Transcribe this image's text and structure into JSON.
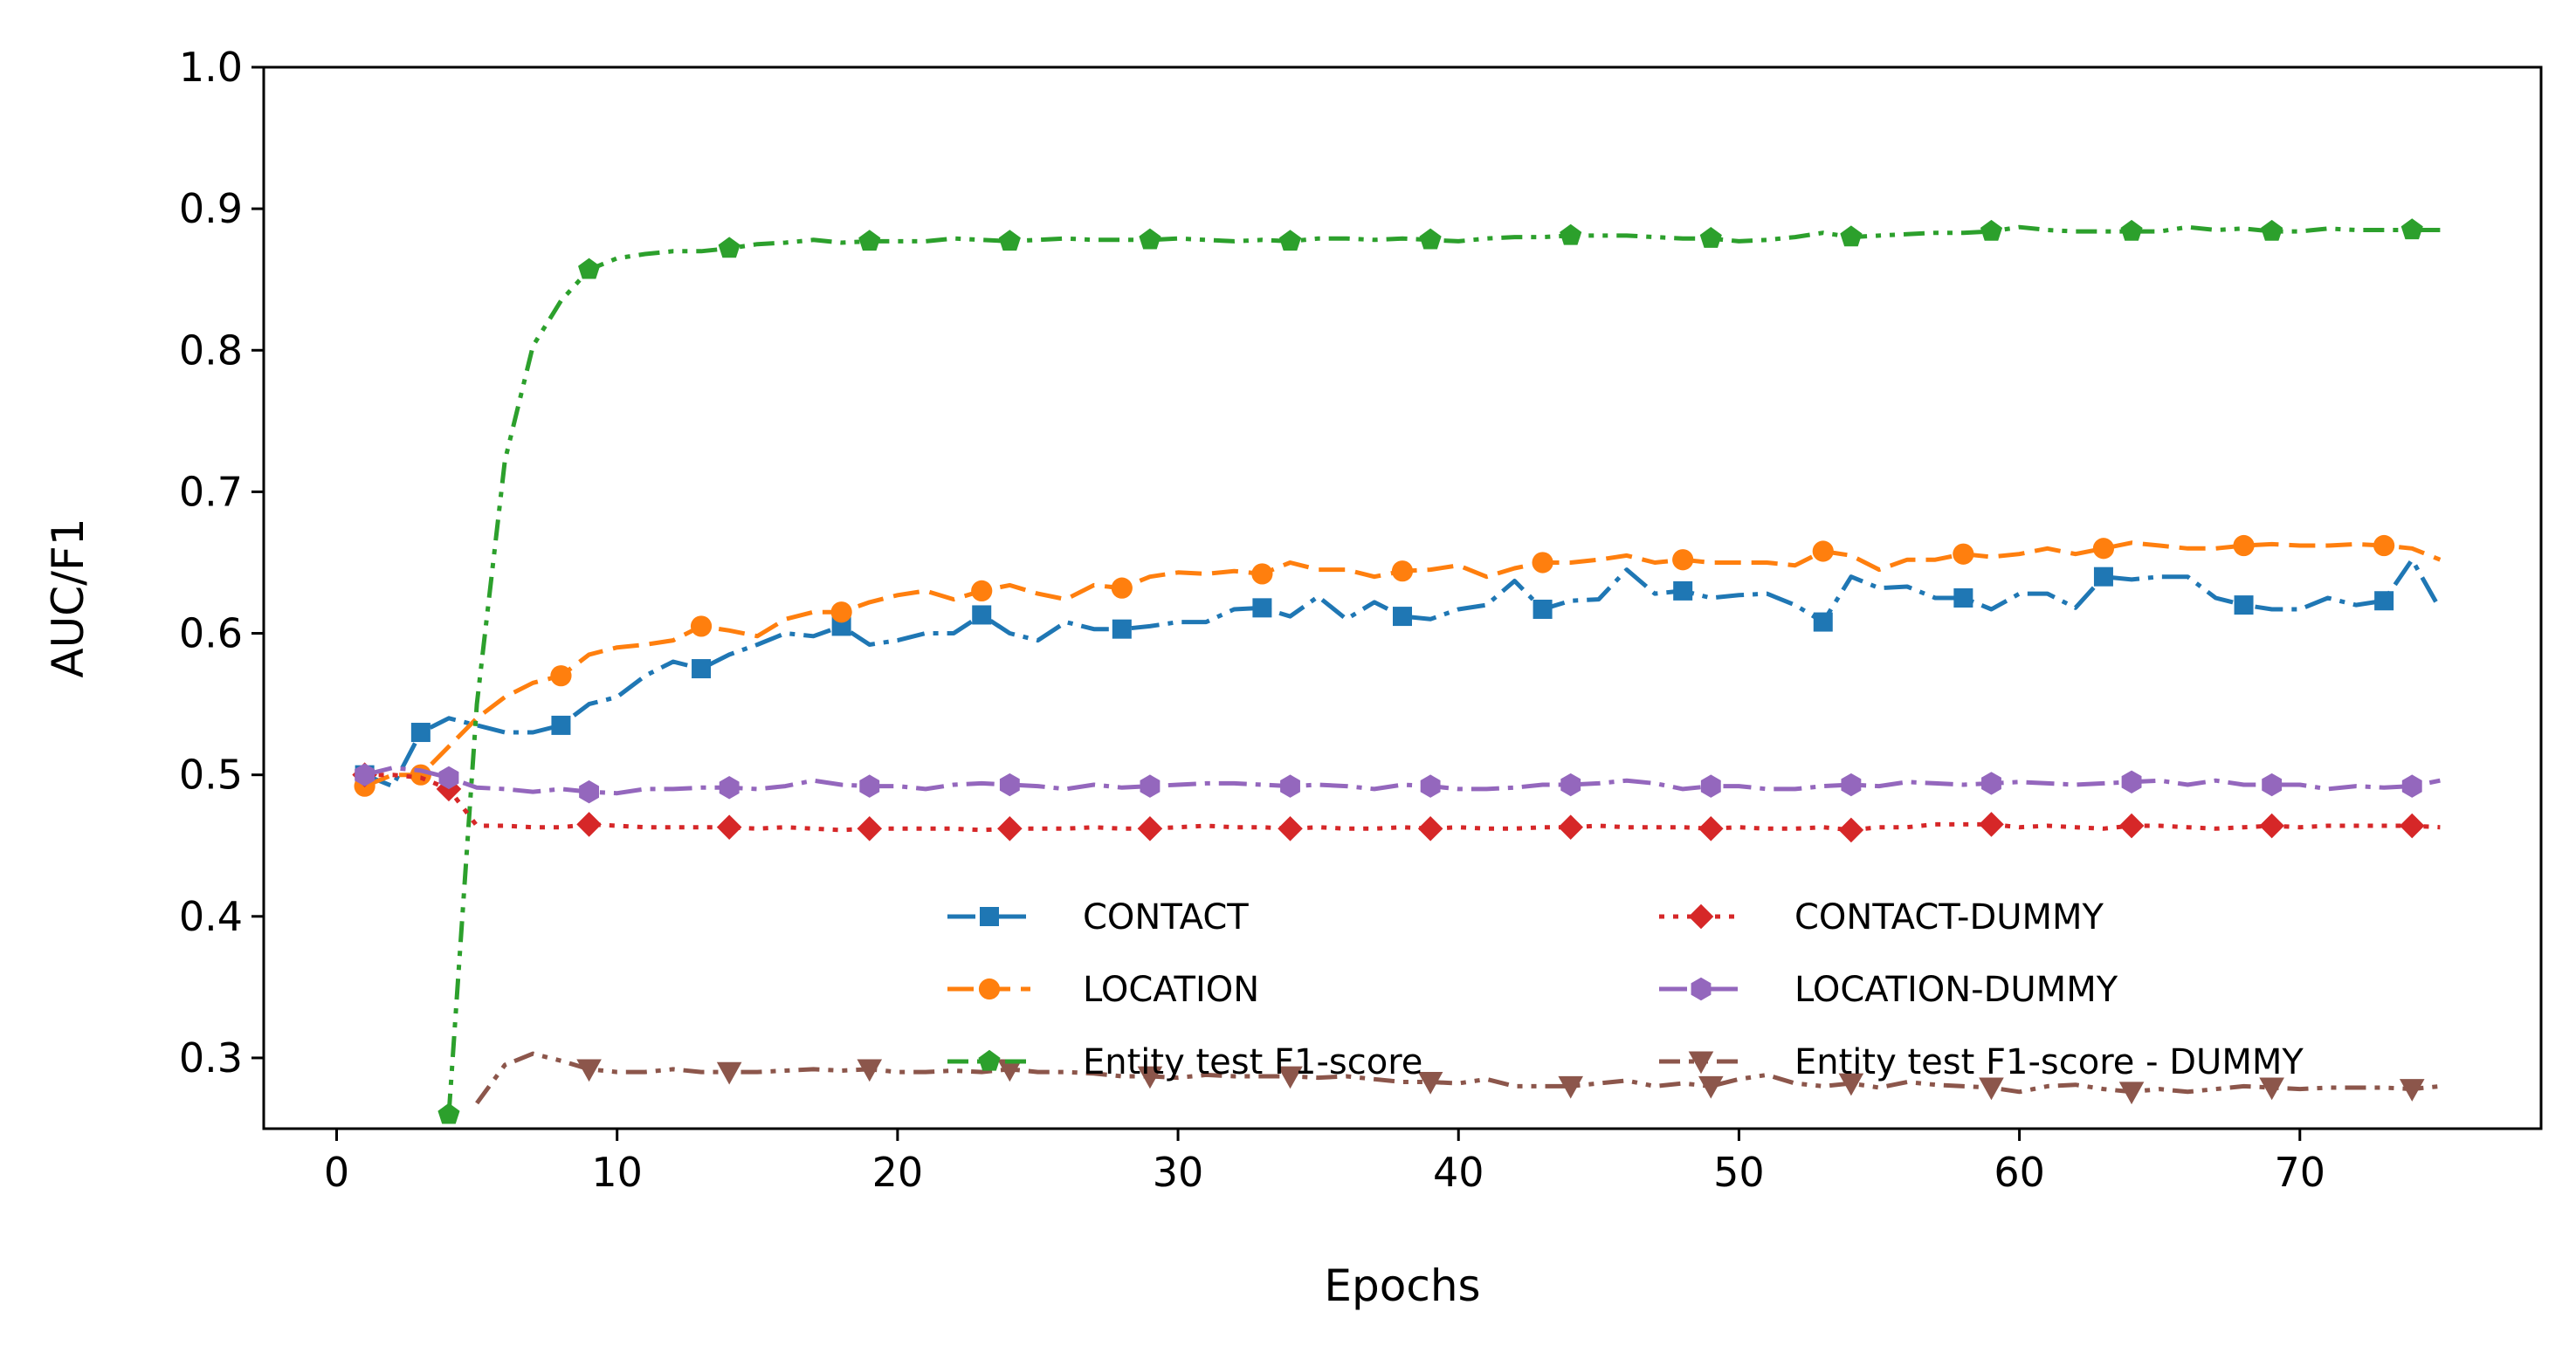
{
  "chart_data": {
    "type": "line",
    "title": "",
    "xlabel": "Epochs",
    "ylabel": "AUC/F1",
    "xlim": [
      -2.6,
      78.6
    ],
    "ylim": [
      0.25,
      1.0
    ],
    "xticks": [
      "0",
      "10",
      "20",
      "30",
      "40",
      "50",
      "60",
      "70"
    ],
    "yticks": [
      "0.3",
      "0.4",
      "0.5",
      "0.6",
      "0.7",
      "0.8",
      "0.9",
      "1.0"
    ],
    "grid": false,
    "legend_placement": "lower-right",
    "x": [
      1,
      2,
      3,
      4,
      5,
      6,
      7,
      8,
      9,
      10,
      11,
      12,
      13,
      14,
      15,
      16,
      17,
      18,
      19,
      20,
      21,
      22,
      23,
      24,
      25,
      26,
      27,
      28,
      29,
      30,
      31,
      32,
      33,
      34,
      35,
      36,
      37,
      38,
      39,
      40,
      41,
      42,
      43,
      44,
      45,
      46,
      47,
      48,
      49,
      50,
      51,
      52,
      53,
      54,
      55,
      56,
      57,
      58,
      59,
      60,
      61,
      62,
      63,
      64,
      65,
      66,
      67,
      68,
      69,
      70,
      71,
      72,
      73,
      74,
      75
    ],
    "series": [
      {
        "name": "CONTACT",
        "color": "#1f77b4",
        "marker": "square",
        "linestyle": "dashdot",
        "values": [
          0.5,
          0.492,
          0.53,
          0.54,
          0.535,
          0.53,
          0.53,
          0.535,
          0.55,
          0.555,
          0.57,
          0.58,
          0.575,
          0.585,
          0.592,
          0.6,
          0.598,
          0.605,
          0.592,
          0.595,
          0.6,
          0.6,
          0.613,
          0.6,
          0.595,
          0.608,
          0.603,
          0.603,
          0.605,
          0.608,
          0.608,
          0.617,
          0.618,
          0.612,
          0.626,
          0.61,
          0.622,
          0.612,
          0.61,
          0.617,
          0.62,
          0.637,
          0.617,
          0.623,
          0.624,
          0.645,
          0.628,
          0.63,
          0.625,
          0.627,
          0.628,
          0.62,
          0.608,
          0.64,
          0.632,
          0.633,
          0.625,
          0.625,
          0.617,
          0.628,
          0.628,
          0.618,
          0.64,
          0.638,
          0.64,
          0.64,
          0.625,
          0.62,
          0.617,
          0.617,
          0.625,
          0.62,
          0.623,
          0.652,
          0.617
        ]
      },
      {
        "name": "LOCATION",
        "color": "#ff7f0e",
        "marker": "circle",
        "linestyle": "dashed",
        "values": [
          0.492,
          0.5,
          0.5,
          0.52,
          0.54,
          0.555,
          0.565,
          0.57,
          0.585,
          0.59,
          0.592,
          0.595,
          0.605,
          0.602,
          0.598,
          0.61,
          0.615,
          0.615,
          0.622,
          0.627,
          0.63,
          0.624,
          0.63,
          0.634,
          0.628,
          0.624,
          0.634,
          0.632,
          0.64,
          0.643,
          0.642,
          0.644,
          0.642,
          0.65,
          0.645,
          0.645,
          0.64,
          0.644,
          0.645,
          0.648,
          0.64,
          0.646,
          0.65,
          0.65,
          0.652,
          0.655,
          0.65,
          0.652,
          0.65,
          0.65,
          0.65,
          0.648,
          0.658,
          0.655,
          0.645,
          0.652,
          0.652,
          0.656,
          0.654,
          0.656,
          0.66,
          0.656,
          0.66,
          0.664,
          0.662,
          0.66,
          0.66,
          0.662,
          0.663,
          0.662,
          0.662,
          0.663,
          0.662,
          0.66,
          0.652
        ]
      },
      {
        "name": "Entity test F1-score",
        "color": "#2ca02c",
        "marker": "pentagon",
        "linestyle": "dashdotdot",
        "values": [
          null,
          null,
          null,
          0.26,
          0.55,
          0.722,
          0.803,
          0.835,
          0.857,
          0.865,
          0.868,
          0.87,
          0.87,
          0.872,
          0.875,
          0.876,
          0.878,
          0.876,
          0.877,
          0.877,
          0.877,
          0.879,
          0.878,
          0.877,
          0.878,
          0.879,
          0.878,
          0.878,
          0.878,
          0.879,
          0.878,
          0.877,
          0.878,
          0.877,
          0.879,
          0.879,
          0.878,
          0.879,
          0.878,
          0.877,
          0.879,
          0.88,
          0.88,
          0.881,
          0.881,
          0.881,
          0.88,
          0.879,
          0.879,
          0.877,
          0.878,
          0.88,
          0.883,
          0.88,
          0.881,
          0.882,
          0.883,
          0.883,
          0.884,
          0.887,
          0.885,
          0.884,
          0.884,
          0.884,
          0.884,
          0.887,
          0.885,
          0.886,
          0.884,
          0.884,
          0.886,
          0.885,
          0.885,
          0.885,
          0.885
        ]
      },
      {
        "name": "CONTACT-DUMMY",
        "color": "#d62728",
        "marker": "diamond",
        "linestyle": "dotted",
        "values": [
          0.5,
          0.5,
          0.498,
          0.49,
          0.464,
          0.464,
          0.463,
          0.463,
          0.465,
          0.464,
          0.463,
          0.463,
          0.463,
          0.463,
          0.462,
          0.463,
          0.462,
          0.461,
          0.462,
          0.462,
          0.462,
          0.462,
          0.461,
          0.462,
          0.462,
          0.462,
          0.463,
          0.462,
          0.462,
          0.463,
          0.464,
          0.463,
          0.463,
          0.462,
          0.463,
          0.462,
          0.462,
          0.463,
          0.462,
          0.463,
          0.462,
          0.462,
          0.463,
          0.463,
          0.464,
          0.463,
          0.463,
          0.463,
          0.462,
          0.463,
          0.462,
          0.462,
          0.463,
          0.461,
          0.463,
          0.463,
          0.465,
          0.465,
          0.465,
          0.463,
          0.464,
          0.463,
          0.462,
          0.464,
          0.464,
          0.463,
          0.462,
          0.463,
          0.464,
          0.463,
          0.464,
          0.464,
          0.464,
          0.464,
          0.463
        ]
      },
      {
        "name": "LOCATION-DUMMY",
        "color": "#9467bd",
        "marker": "hexagon",
        "linestyle": "dashdot",
        "values": [
          0.5,
          0.505,
          0.503,
          0.498,
          0.491,
          0.49,
          0.488,
          0.49,
          0.488,
          0.487,
          0.49,
          0.49,
          0.491,
          0.491,
          0.49,
          0.492,
          0.496,
          0.493,
          0.492,
          0.492,
          0.49,
          0.493,
          0.494,
          0.493,
          0.492,
          0.49,
          0.493,
          0.491,
          0.492,
          0.493,
          0.494,
          0.494,
          0.493,
          0.492,
          0.493,
          0.492,
          0.49,
          0.493,
          0.492,
          0.49,
          0.49,
          0.491,
          0.493,
          0.493,
          0.494,
          0.496,
          0.494,
          0.49,
          0.492,
          0.492,
          0.49,
          0.49,
          0.492,
          0.493,
          0.492,
          0.495,
          0.494,
          0.493,
          0.494,
          0.495,
          0.494,
          0.493,
          0.494,
          0.495,
          0.496,
          0.493,
          0.496,
          0.493,
          0.493,
          0.493,
          0.49,
          0.492,
          0.491,
          0.492,
          0.496
        ]
      },
      {
        "name": "Entity test F1-score - DUMMY",
        "color": "#8c564b",
        "marker": "triangle-down",
        "linestyle": "dashdotdot",
        "values": [
          null,
          null,
          null,
          null,
          0.268,
          0.295,
          0.303,
          0.298,
          0.292,
          0.29,
          0.29,
          0.292,
          0.29,
          0.29,
          0.29,
          0.291,
          0.292,
          0.291,
          0.292,
          0.29,
          0.29,
          0.291,
          0.29,
          0.292,
          0.29,
          0.29,
          0.289,
          0.287,
          0.287,
          0.286,
          0.288,
          0.287,
          0.287,
          0.287,
          0.286,
          0.287,
          0.285,
          0.283,
          0.283,
          0.282,
          0.285,
          0.28,
          0.28,
          0.28,
          0.282,
          0.284,
          0.28,
          0.282,
          0.28,
          0.285,
          0.288,
          0.282,
          0.28,
          0.282,
          0.279,
          0.283,
          0.281,
          0.28,
          0.279,
          0.276,
          0.28,
          0.281,
          0.278,
          0.276,
          0.278,
          0.276,
          0.278,
          0.28,
          0.279,
          0.278,
          0.279,
          0.279,
          0.279,
          0.278,
          0.28
        ]
      }
    ]
  }
}
